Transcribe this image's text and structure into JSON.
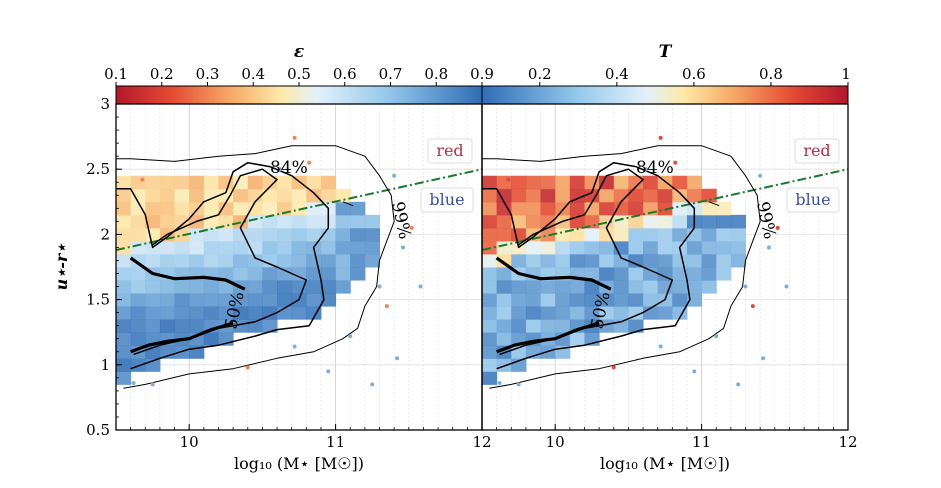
{
  "chart_data": [
    {
      "type": "heatmap",
      "panel": "left",
      "colorbar_title": "ε",
      "colorbar_ticks": [
        "0.1",
        "0.2",
        "0.3",
        "0.4",
        "0.5",
        "0.6",
        "0.7",
        "0.8",
        "0.9"
      ],
      "colorbar_range": [
        0.1,
        0.9
      ],
      "xlabel": "log₁₀ (M⋆ [M☉])",
      "ylabel": "u⋆-r⋆",
      "xlim": [
        9.5,
        12
      ],
      "ylim": [
        0.5,
        3
      ],
      "x_ticks": [
        "10",
        "11",
        "12"
      ],
      "y_ticks": [
        "0.5",
        "1",
        "1.5",
        "2",
        "2.5",
        "3"
      ],
      "divider_line": {
        "x": [
          9.5,
          12
        ],
        "y": [
          1.88,
          2.5
        ]
      },
      "region_labels": {
        "red": "red",
        "blue": "blue"
      },
      "contour_labels": [
        "84%",
        "50%",
        "99%"
      ],
      "grid_summary": {
        "x_bins": "9.5–11.2 step 0.1",
        "y_bins": "0.85–2.4 step 0.1"
      }
    },
    {
      "type": "heatmap",
      "panel": "right",
      "colorbar_title": "T",
      "colorbar_ticks": [
        "0.2",
        "0.4",
        "0.6",
        "0.8",
        "1"
      ],
      "colorbar_range": [
        0.05,
        1
      ],
      "xlabel": "log₁₀ (M⋆ [M☉])",
      "ylabel": "",
      "xlim": [
        9.5,
        12
      ],
      "ylim": [
        0.5,
        3
      ],
      "x_ticks": [
        "10",
        "11",
        "12"
      ],
      "y_ticks": [],
      "divider_line": {
        "x": [
          9.5,
          12
        ],
        "y": [
          1.88,
          2.5
        ]
      },
      "region_labels": {
        "red": "red",
        "blue": "blue"
      },
      "contour_labels": [
        "84%",
        "50%",
        "99%"
      ]
    }
  ],
  "colors": {
    "divider": "#1a7a2a",
    "red_label": "#b03040",
    "blue_label": "#3a4fa0"
  }
}
